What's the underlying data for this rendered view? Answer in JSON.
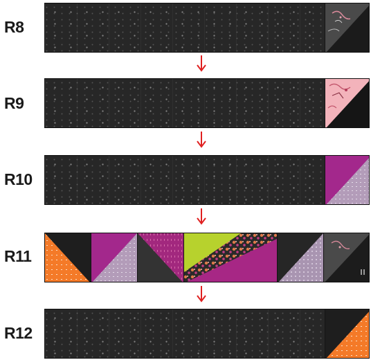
{
  "rows": [
    {
      "label": "R8"
    },
    {
      "label": "R9"
    },
    {
      "label": "R10"
    },
    {
      "label": "R11"
    },
    {
      "label": "R12"
    }
  ],
  "colors": {
    "black_print": "#272727",
    "pink": "#f4b5bd",
    "magenta": "#a3288c",
    "lavender": "#b29ab8",
    "orange": "#f47a28",
    "lime": "#b7d22d",
    "charcoal": "#3c3c3c",
    "arrow_red": "#e02020"
  }
}
